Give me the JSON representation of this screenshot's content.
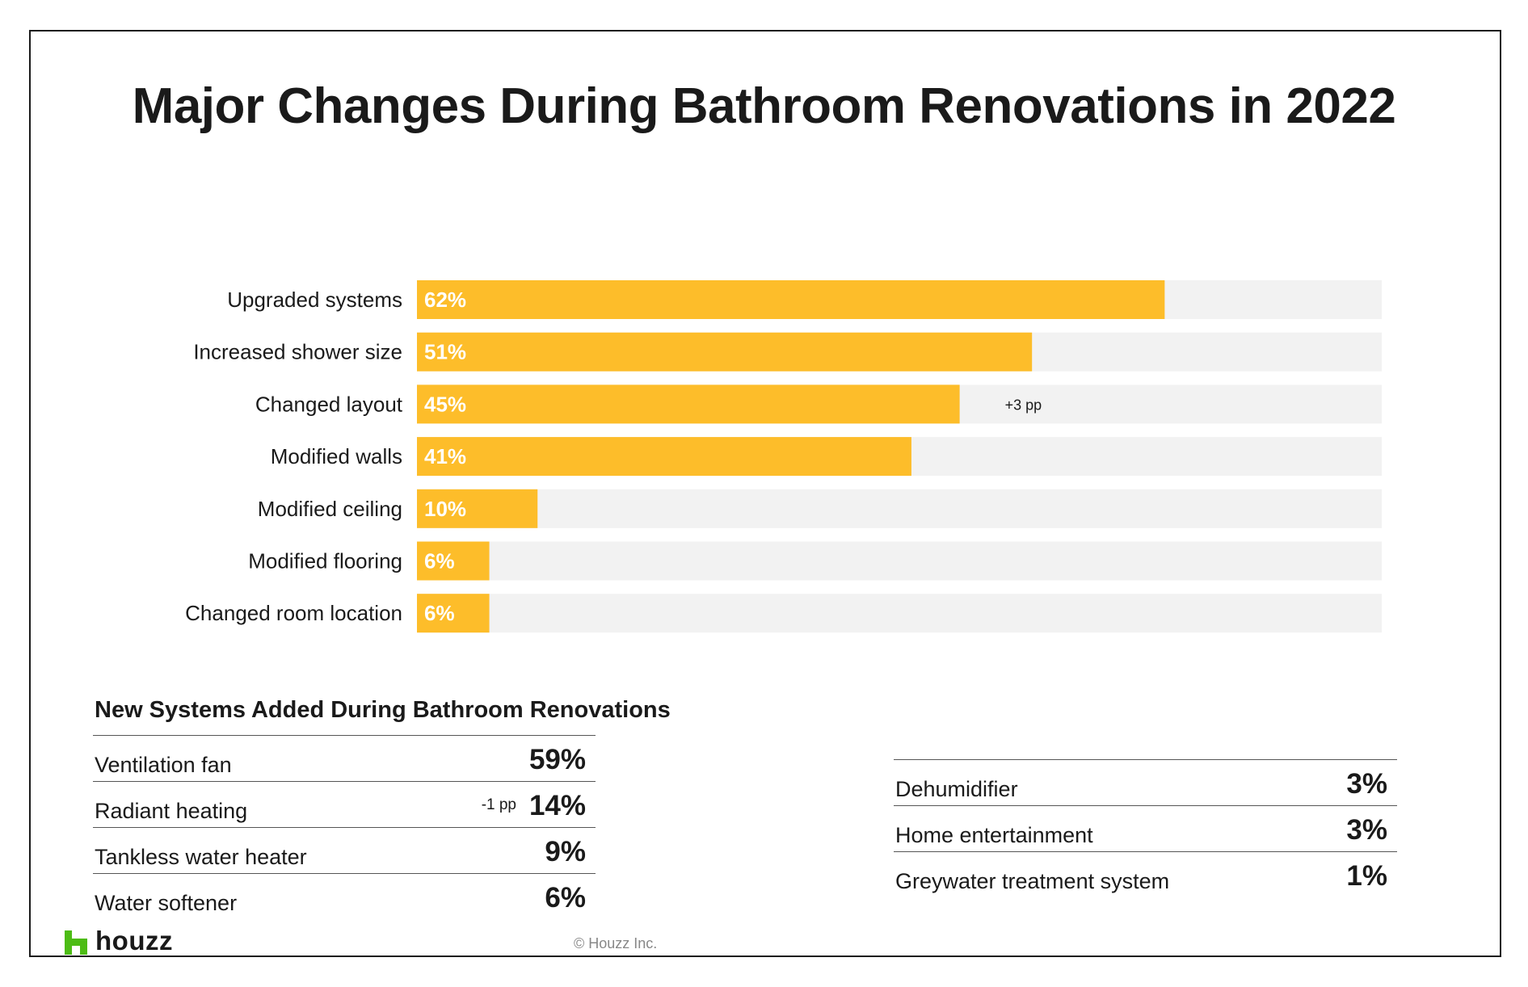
{
  "title": "Major Changes During Bathroom Renovations in 2022",
  "chart_data": {
    "type": "bar",
    "orientation": "horizontal",
    "categories": [
      "Upgraded systems",
      "Increased shower size",
      "Changed layout",
      "Modified walls",
      "Modified ceiling",
      "Modified flooring",
      "Changed room location"
    ],
    "values": [
      62,
      51,
      45,
      41,
      10,
      6,
      6
    ],
    "value_labels": [
      "62%",
      "51%",
      "45%",
      "41%",
      "10%",
      "6%",
      "6%"
    ],
    "annotations": [
      {
        "category": "Changed layout",
        "text": "+3 pp"
      }
    ],
    "xlim": [
      0,
      80
    ],
    "grid": false,
    "colors": {
      "bar": "#FDBD2A",
      "track": "#F2F2F2",
      "value_label": "#FFFFFF"
    }
  },
  "systems_table": {
    "title": "New Systems Added During Bathroom Renovations",
    "left": [
      {
        "label": "Ventilation fan",
        "value": "59%",
        "change": ""
      },
      {
        "label": "Radiant heating",
        "value": "14%",
        "change": "-1 pp"
      },
      {
        "label": "Tankless water heater",
        "value": "9%",
        "change": ""
      },
      {
        "label": "Water softener",
        "value": "6%",
        "change": ""
      }
    ],
    "right": [
      {
        "label": "Dehumidifier",
        "value": "3%",
        "change": ""
      },
      {
        "label": "Home entertainment",
        "value": "3%",
        "change": ""
      },
      {
        "label": "Greywater treatment system",
        "value": "1%",
        "change": ""
      }
    ]
  },
  "footer": {
    "logo_text": "houzz",
    "logo_color": "#4DBC15",
    "copyright": "© Houzz Inc."
  }
}
